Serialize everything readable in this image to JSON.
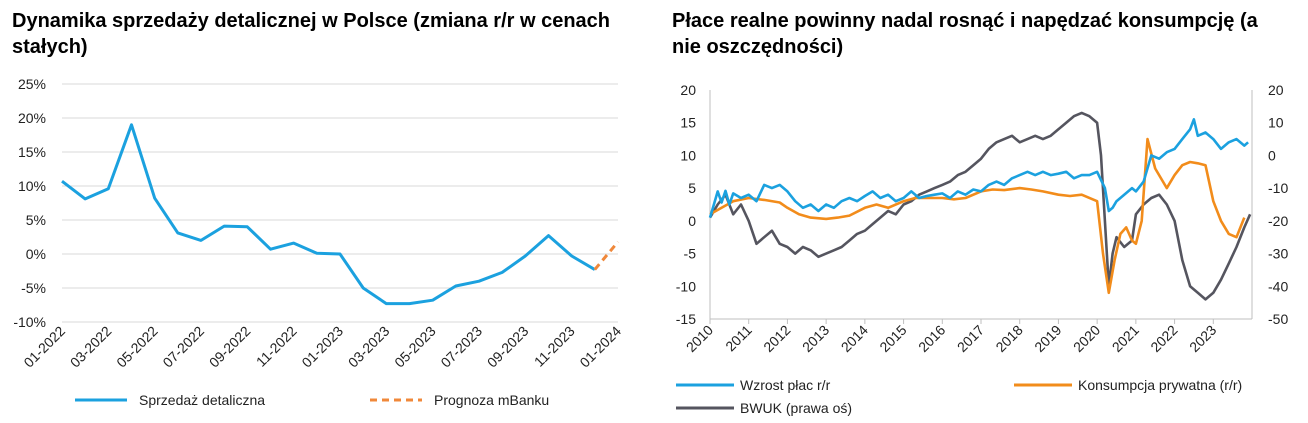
{
  "chart_data": [
    {
      "type": "line",
      "title": "Dynamika sprzedaży detalicznej w Polsce (zmiana r/r w cenach stałych)",
      "x": [
        "01-2022",
        "02-2022",
        "03-2022",
        "04-2022",
        "05-2022",
        "06-2022",
        "07-2022",
        "08-2022",
        "09-2022",
        "10-2022",
        "11-2022",
        "12-2022",
        "01-2023",
        "02-2023",
        "03-2023",
        "04-2023",
        "05-2023",
        "06-2023",
        "07-2023",
        "08-2023",
        "09-2023",
        "10-2023",
        "11-2023",
        "12-2023",
        "01-2024"
      ],
      "x_tick_labels": [
        "01-2022",
        "03-2022",
        "05-2022",
        "07-2022",
        "09-2022",
        "11-2022",
        "01-2023",
        "03-2023",
        "05-2023",
        "07-2023",
        "09-2023",
        "11-2023",
        "01-2024"
      ],
      "y_tick_labels": [
        "25%",
        "20%",
        "15%",
        "10%",
        "5%",
        "0%",
        "-5%",
        "-10%"
      ],
      "ylim": [
        -10,
        25
      ],
      "grid": "horizontal",
      "legend_position": "bottom",
      "series": [
        {
          "name": "Sprzedaż detaliczna",
          "color": "#1BA1DF",
          "style": "solid",
          "values": [
            10.7,
            8.1,
            9.6,
            19.0,
            8.2,
            3.1,
            2.0,
            4.1,
            4.0,
            0.7,
            1.6,
            0.1,
            0.0,
            -5.0,
            -7.3,
            -7.3,
            -6.8,
            -4.7,
            -4.0,
            -2.7,
            -0.3,
            2.7,
            -0.3,
            -2.3,
            null
          ]
        },
        {
          "name": "Prognoza mBanku",
          "color": "#F0883A",
          "style": "dashed",
          "values": [
            null,
            null,
            null,
            null,
            null,
            null,
            null,
            null,
            null,
            null,
            null,
            null,
            null,
            null,
            null,
            null,
            null,
            null,
            null,
            null,
            null,
            null,
            null,
            -2.3,
            1.8
          ]
        }
      ]
    },
    {
      "type": "line",
      "title": "Płace realne powinny nadal rosnąć i napędzać konsumpcję (a nie oszczędności)",
      "x_tick_labels": [
        "2010",
        "2011",
        "2012",
        "2013",
        "2014",
        "2015",
        "2016",
        "2017",
        "2018",
        "2019",
        "2020",
        "2021",
        "2022",
        "2023"
      ],
      "y_left_tick_labels": [
        "20",
        "15",
        "10",
        "5",
        "0",
        "-5",
        "-10",
        "-15"
      ],
      "y_right_tick_labels": [
        "20",
        "10",
        "0",
        "-10",
        "-20",
        "-30",
        "-40",
        "-50"
      ],
      "ylim_left": [
        -15,
        20
      ],
      "ylim_right": [
        -50,
        20
      ],
      "xlim": [
        2010,
        2024
      ],
      "legend_position": "bottom",
      "series": [
        {
          "name": "Wzrost płac r/r",
          "color": "#1BA1DF",
          "axis": "left",
          "x": [
            2010.0,
            2010.1,
            2010.2,
            2010.3,
            2010.4,
            2010.5,
            2010.6,
            2010.8,
            2011.0,
            2011.2,
            2011.4,
            2011.6,
            2011.8,
            2012.0,
            2012.2,
            2012.4,
            2012.6,
            2012.8,
            2013.0,
            2013.2,
            2013.4,
            2013.6,
            2013.8,
            2014.0,
            2014.2,
            2014.4,
            2014.6,
            2014.8,
            2015.0,
            2015.2,
            2015.4,
            2015.6,
            2015.8,
            2016.0,
            2016.2,
            2016.4,
            2016.6,
            2016.8,
            2017.0,
            2017.2,
            2017.4,
            2017.6,
            2017.8,
            2018.0,
            2018.2,
            2018.4,
            2018.6,
            2018.8,
            2019.0,
            2019.2,
            2019.4,
            2019.6,
            2019.8,
            2020.0,
            2020.2,
            2020.3,
            2020.4,
            2020.5,
            2020.7,
            2020.9,
            2021.0,
            2021.2,
            2021.4,
            2021.6,
            2021.8,
            2022.0,
            2022.2,
            2022.4,
            2022.5,
            2022.6,
            2022.8,
            2023.0,
            2023.2,
            2023.4,
            2023.6,
            2023.8,
            2023.9
          ],
          "values": [
            0.5,
            2.5,
            4.5,
            2.8,
            4.6,
            2.5,
            4.2,
            3.5,
            4.0,
            3.0,
            5.5,
            5.0,
            5.5,
            4.5,
            3.0,
            2.0,
            2.5,
            1.5,
            2.5,
            2.0,
            3.0,
            3.5,
            3.0,
            3.8,
            4.5,
            3.5,
            4.0,
            3.0,
            3.5,
            4.5,
            3.5,
            3.8,
            4.0,
            4.2,
            3.5,
            4.5,
            4.0,
            4.8,
            4.5,
            5.5,
            6.0,
            5.5,
            6.5,
            7.0,
            7.5,
            7.0,
            7.5,
            7.0,
            7.2,
            7.5,
            6.5,
            7.0,
            7.0,
            7.5,
            5.0,
            1.5,
            2.0,
            3.0,
            4.0,
            5.0,
            4.5,
            6.0,
            10.0,
            9.5,
            10.5,
            11.0,
            12.5,
            14.0,
            15.5,
            13.0,
            13.5,
            12.5,
            11.0,
            12.0,
            12.5,
            11.5,
            12.0
          ]
        },
        {
          "name": "Konsumpcja prywatna (r/r)",
          "color": "#F28C1B",
          "axis": "left",
          "x": [
            2010.0,
            2010.3,
            2010.6,
            2011.0,
            2011.4,
            2011.8,
            2012.0,
            2012.3,
            2012.6,
            2013.0,
            2013.3,
            2013.6,
            2014.0,
            2014.3,
            2014.6,
            2015.0,
            2015.3,
            2015.6,
            2016.0,
            2016.3,
            2016.6,
            2017.0,
            2017.3,
            2017.6,
            2018.0,
            2018.3,
            2018.6,
            2019.0,
            2019.3,
            2019.6,
            2020.0,
            2020.15,
            2020.3,
            2020.45,
            2020.6,
            2020.75,
            2020.9,
            2021.0,
            2021.15,
            2021.3,
            2021.5,
            2021.8,
            2022.0,
            2022.2,
            2022.4,
            2022.6,
            2022.8,
            2023.0,
            2023.2,
            2023.4,
            2023.6,
            2023.8
          ],
          "values": [
            1.0,
            2.0,
            3.0,
            3.5,
            3.2,
            2.8,
            2.0,
            1.0,
            0.5,
            0.3,
            0.5,
            0.8,
            2.0,
            2.5,
            2.0,
            3.0,
            3.5,
            3.5,
            3.5,
            3.3,
            3.5,
            4.5,
            4.8,
            4.7,
            5.0,
            4.8,
            4.5,
            4.0,
            3.8,
            4.0,
            3.0,
            -5.0,
            -11.0,
            -6.0,
            -2.0,
            -1.0,
            -3.0,
            -3.5,
            0.0,
            12.5,
            8.0,
            5.0,
            7.0,
            8.5,
            9.0,
            8.8,
            8.5,
            3.0,
            0.0,
            -2.0,
            -2.5,
            0.5
          ]
        },
        {
          "name": "BWUK (prawa oś)",
          "color": "#55555F",
          "axis": "right",
          "x": [
            2010.0,
            2010.2,
            2010.4,
            2010.6,
            2010.8,
            2011.0,
            2011.2,
            2011.4,
            2011.6,
            2011.8,
            2012.0,
            2012.2,
            2012.4,
            2012.6,
            2012.8,
            2013.0,
            2013.2,
            2013.4,
            2013.6,
            2013.8,
            2014.0,
            2014.2,
            2014.4,
            2014.6,
            2014.8,
            2015.0,
            2015.2,
            2015.4,
            2015.6,
            2015.8,
            2016.0,
            2016.2,
            2016.4,
            2016.6,
            2016.8,
            2017.0,
            2017.2,
            2017.4,
            2017.6,
            2017.8,
            2018.0,
            2018.2,
            2018.4,
            2018.6,
            2018.8,
            2019.0,
            2019.2,
            2019.4,
            2019.6,
            2019.8,
            2020.0,
            2020.1,
            2020.2,
            2020.3,
            2020.4,
            2020.5,
            2020.7,
            2020.9,
            2021.0,
            2021.2,
            2021.4,
            2021.6,
            2021.8,
            2022.0,
            2022.2,
            2022.4,
            2022.6,
            2022.8,
            2023.0,
            2023.2,
            2023.4,
            2023.6,
            2023.8,
            2023.95
          ],
          "values": [
            -19,
            -15,
            -12,
            -18,
            -15,
            -20,
            -27,
            -25,
            -23,
            -27,
            -28,
            -30,
            -28,
            -29,
            -31,
            -30,
            -29,
            -28,
            -26,
            -24,
            -23,
            -21,
            -19,
            -17,
            -18,
            -15,
            -14,
            -12,
            -11,
            -10,
            -9,
            -8,
            -6,
            -5,
            -3,
            -1,
            2,
            4,
            5,
            6,
            4,
            5,
            6,
            5,
            6,
            8,
            10,
            12,
            13,
            12,
            10,
            0,
            -20,
            -40,
            -30,
            -25,
            -28,
            -26,
            -18,
            -15,
            -13,
            -12,
            -15,
            -20,
            -32,
            -40,
            -42,
            -44,
            -42,
            -38,
            -33,
            -28,
            -22,
            -18
          ]
        }
      ]
    }
  ]
}
